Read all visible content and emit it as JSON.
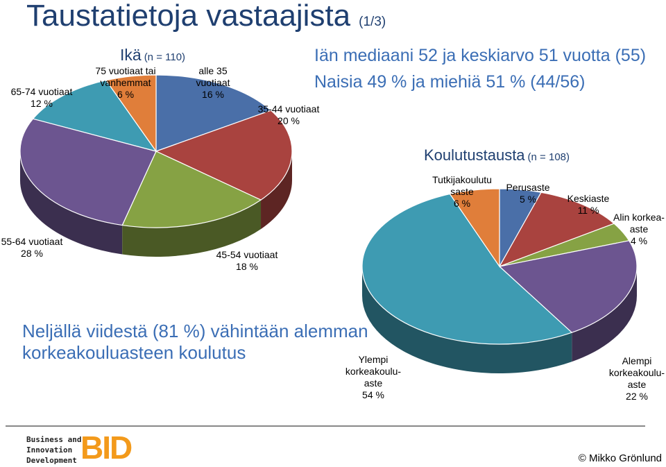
{
  "page": {
    "title": "Taustatietoja vastaajista",
    "title_suffix": "(1/3)",
    "median_text": "Iän mediaani 52 ja keskiarvo 51 vuotta (55)",
    "gender_text": "Naisia 49 % ja miehiä 51 % (44/56)",
    "summary_line1": "Neljällä viidestä (81 %) vähintään alemman",
    "summary_line2": "korkeakouluasteen koulutus",
    "copyright": "© Mikko Grönlund",
    "logo_line1": "Business and",
    "logo_line2": "Innovation",
    "logo_line3": "Development",
    "logo_mark": "BID"
  },
  "chart_data": [
    {
      "type": "pie",
      "title": "Ikä",
      "title_n": "(n = 110)",
      "unit": "%",
      "slices": [
        {
          "label_lines": [
            "alle 35",
            "vuotiaat",
            "16 %"
          ],
          "value": 16,
          "color": "#4a6fa8"
        },
        {
          "label_lines": [
            "35-44 vuotiaat",
            "20 %"
          ],
          "value": 20,
          "color": "#a9433f"
        },
        {
          "label_lines": [
            "45-54 vuotiaat",
            "18 %"
          ],
          "value": 18,
          "color": "#86a244"
        },
        {
          "label_lines": [
            "55-64 vuotiaat",
            "28 %"
          ],
          "value": 28,
          "color": "#6c5590"
        },
        {
          "label_lines": [
            "65-74 vuotiaat",
            "12 %"
          ],
          "value": 12,
          "color": "#3e9bb2"
        },
        {
          "label_lines": [
            "75 vuotiaat tai",
            "vanhemmat",
            "6 %"
          ],
          "value": 6,
          "color": "#e07e3a"
        }
      ]
    },
    {
      "type": "pie",
      "title": "Koulutustausta",
      "title_n": "(n = 108)",
      "unit": "%",
      "slices": [
        {
          "label_lines": [
            "Perusaste",
            "5 %"
          ],
          "value": 5,
          "color": "#4a6fa8"
        },
        {
          "label_lines": [
            "Keskiaste",
            "11 %"
          ],
          "value": 11,
          "color": "#a9433f"
        },
        {
          "label_lines": [
            "Alin korkea-",
            "aste",
            "4 %"
          ],
          "value": 4,
          "color": "#86a244"
        },
        {
          "label_lines": [
            "Alempi",
            "korkeakoulu-",
            "aste",
            "22 %"
          ],
          "value": 22,
          "color": "#6c5590"
        },
        {
          "label_lines": [
            "Ylempi",
            "korkeakoulu-",
            "aste",
            "54 %"
          ],
          "value": 54,
          "color": "#3e9bb2"
        },
        {
          "label_lines": [
            "Tutkijakoulutu",
            "saste",
            "6 %"
          ],
          "value": 6,
          "color": "#e07e3a"
        }
      ]
    }
  ]
}
